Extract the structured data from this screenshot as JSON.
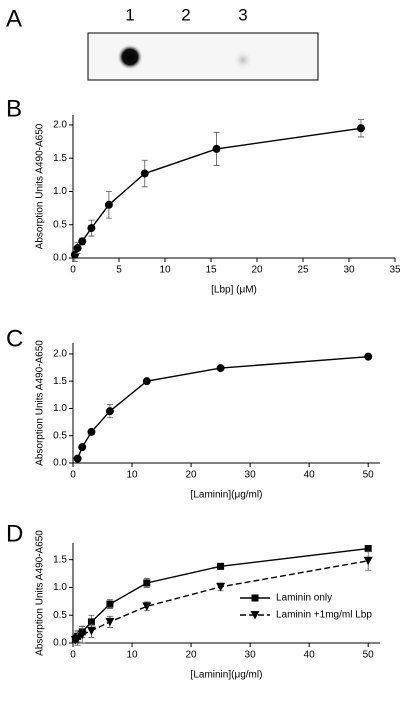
{
  "blot": {
    "label": "A",
    "lanes": [
      "1",
      "2",
      "3"
    ]
  },
  "chart_data": [
    {
      "type": "line",
      "label": "B",
      "x_label": "[Lbp] (μM)",
      "y_label": "Absorption Units A490-A650",
      "marker": "circle",
      "color": "#000",
      "x": [
        0.2,
        0.5,
        1.0,
        2.0,
        3.9,
        7.8,
        15.6,
        31.3
      ],
      "values": [
        0.05,
        0.15,
        0.25,
        0.45,
        0.8,
        1.27,
        1.64,
        1.95
      ],
      "errors": [
        0.1,
        0.08,
        0.05,
        0.12,
        0.2,
        0.2,
        0.25,
        0.13
      ],
      "xlim": [
        0,
        35
      ],
      "xticks": [
        0,
        5,
        10,
        15,
        20,
        25,
        30,
        35
      ],
      "ylim": [
        0,
        2.15
      ],
      "yticks": [
        {
          "value": 0,
          "label": "0.0"
        },
        {
          "value": 0.5,
          "label": "0.5"
        },
        {
          "value": 1,
          "label": "1.0"
        },
        {
          "value": 1.5,
          "label": "1.5"
        },
        {
          "value": 2,
          "label": "2.0"
        }
      ]
    },
    {
      "type": "line",
      "label": "C",
      "x_label": "[Laminin](μg/ml)",
      "y_label": "Absorption Units A490-A650",
      "marker": "circle",
      "color": "#000",
      "x": [
        0.78,
        1.56,
        3.125,
        6.25,
        12.5,
        25,
        50
      ],
      "values": [
        0.08,
        0.29,
        0.57,
        0.95,
        1.5,
        1.74,
        1.95
      ],
      "errors": [
        0.03,
        0.03,
        0.03,
        0.12,
        0.03,
        0.03,
        0.03
      ],
      "xlim": [
        0,
        52
      ],
      "xticks": [
        0,
        10,
        20,
        30,
        40,
        50
      ],
      "ylim": [
        0,
        2.2
      ],
      "yticks": [
        {
          "value": 0,
          "label": "0.0"
        },
        {
          "value": 0.5,
          "label": "0.5"
        },
        {
          "value": 1,
          "label": "1.0"
        },
        {
          "value": 1.5,
          "label": "1.5"
        },
        {
          "value": 2,
          "label": "2.0"
        }
      ]
    },
    {
      "type": "line",
      "label": "D",
      "x_label": "[Laminin](μg/ml)",
      "y_label": "Absorption Units A490-A650",
      "legend": "lower right",
      "x": [
        0.4,
        0.78,
        1.56,
        3.125,
        6.25,
        12.5,
        25,
        50
      ],
      "series": [
        {
          "name": "Laminin only",
          "color": "#000",
          "marker": "square",
          "dashed": false,
          "values": [
            0.07,
            0.12,
            0.2,
            0.38,
            0.7,
            1.08,
            1.38,
            1.7
          ],
          "errors": [
            0.05,
            0.1,
            0.1,
            0.12,
            0.08,
            0.08,
            0.03,
            0.04
          ]
        },
        {
          "name": "Laminin +1mg/ml Lbp",
          "color": "#000",
          "marker": "triangle-down",
          "dashed": true,
          "values": [
            0.05,
            0.08,
            0.15,
            0.22,
            0.38,
            0.66,
            1.01,
            1.48
          ],
          "errors": [
            0.05,
            0.12,
            0.15,
            0.12,
            0.1,
            0.08,
            0.07,
            0.17
          ]
        }
      ],
      "xlim": [
        0,
        52
      ],
      "xticks": [
        0,
        10,
        20,
        30,
        40,
        50
      ],
      "ylim": [
        0,
        1.8
      ],
      "yticks": [
        {
          "value": 0,
          "label": "0.0"
        },
        {
          "value": 0.5,
          "label": "0.5"
        },
        {
          "value": 1,
          "label": "1.0"
        },
        {
          "value": 1.5,
          "label": "1.5"
        }
      ]
    }
  ]
}
